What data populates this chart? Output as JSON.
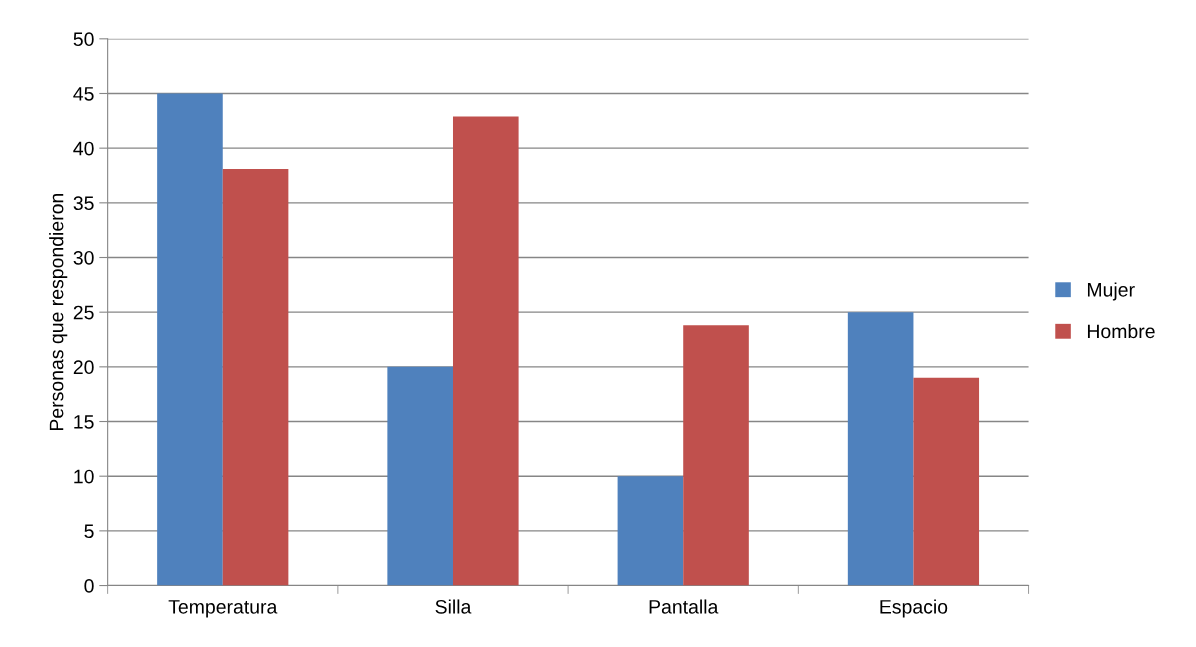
{
  "chart_data": {
    "type": "bar",
    "ylabel": "Personas que respondieron",
    "categories": [
      "Temperatura",
      "Silla",
      "Pantalla",
      "Espacio"
    ],
    "series": [
      {
        "name": "Mujer",
        "color": "#4f81bd",
        "values": [
          45,
          20,
          10,
          25
        ]
      },
      {
        "name": "Hombre",
        "color": "#c0504d",
        "values": [
          38.1,
          42.9,
          23.8,
          19.0
        ]
      }
    ],
    "ylim": [
      0,
      50
    ],
    "yticks": [
      0,
      5,
      10,
      15,
      20,
      25,
      30,
      35,
      40,
      45,
      50
    ],
    "grid": "y",
    "legend": "right"
  }
}
